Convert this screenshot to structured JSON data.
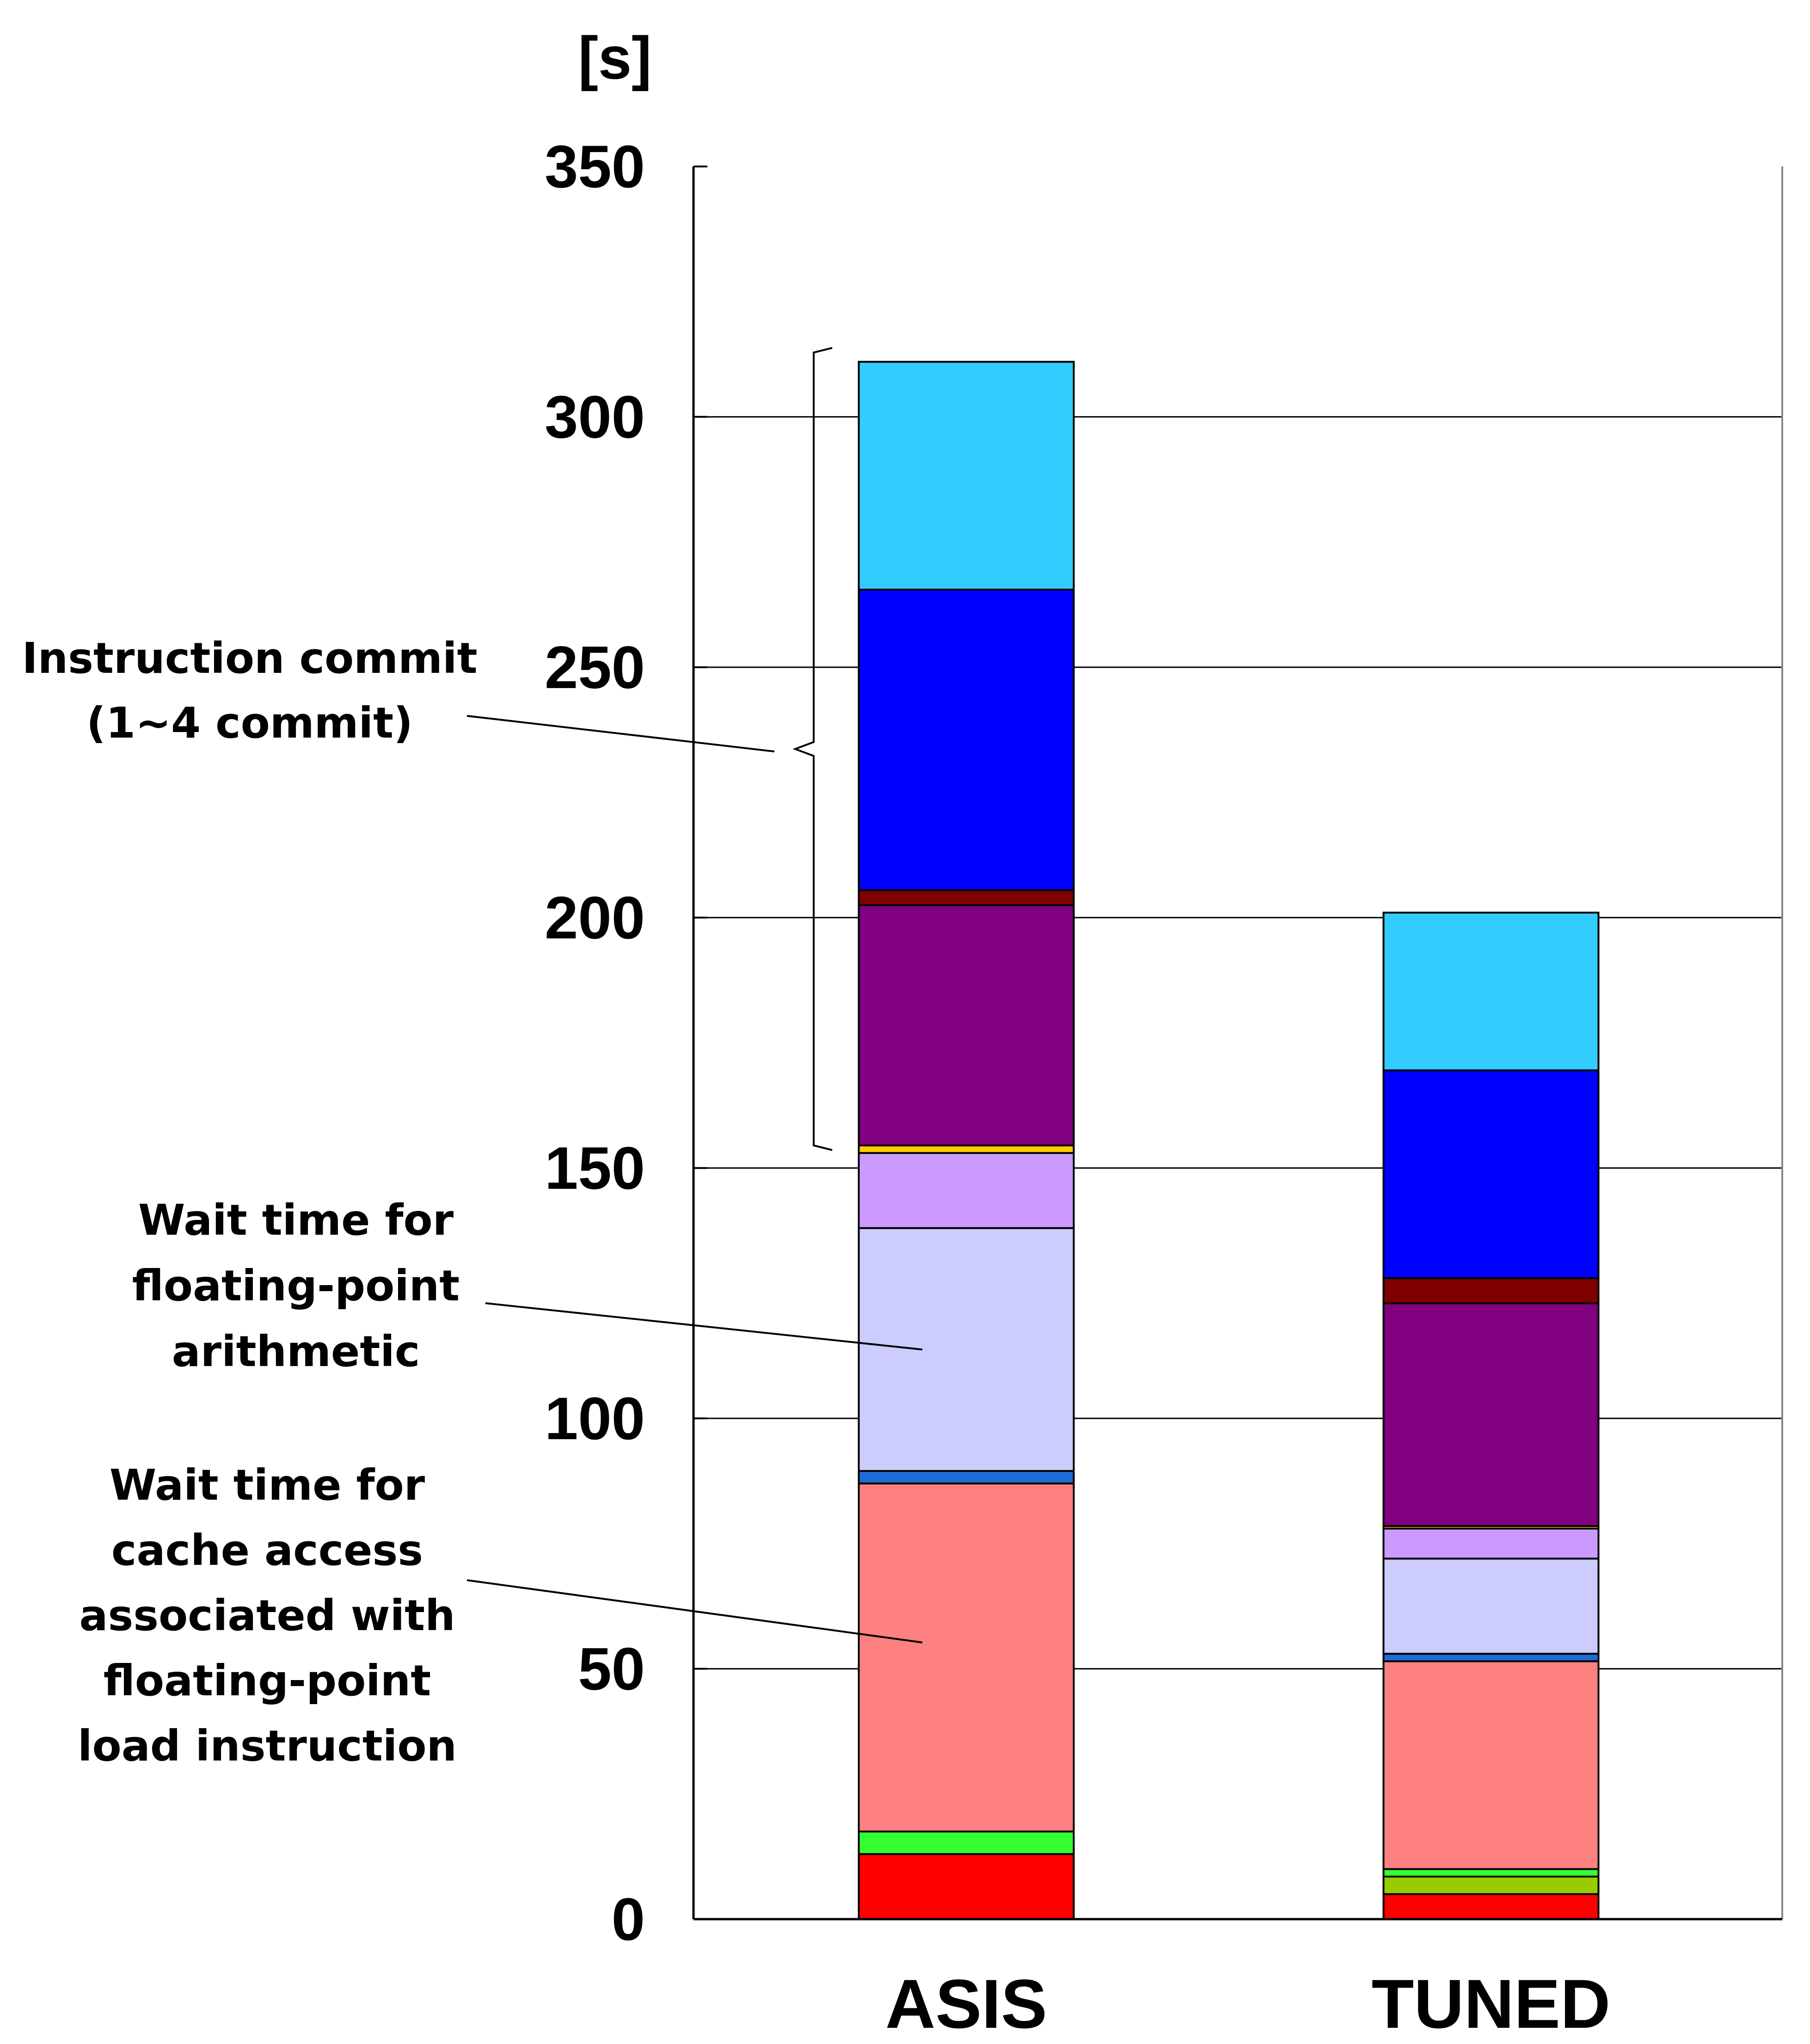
{
  "chart_data": {
    "type": "bar",
    "stacked": true,
    "unit_label": "[s]",
    "title": "",
    "xlabel": "",
    "ylabel": "",
    "ylim": [
      0,
      350
    ],
    "yticks": [
      0,
      50,
      100,
      150,
      200,
      250,
      300,
      350
    ],
    "grid": true,
    "legend": "none",
    "categories": [
      "ASIS",
      "TUNED"
    ],
    "series": [
      {
        "color": "#FF0000",
        "values": [
          13,
          5
        ]
      },
      {
        "color": "#99CC00",
        "values": [
          0,
          3.5
        ]
      },
      {
        "color": "#33FF33",
        "values": [
          4.5,
          1.5
        ]
      },
      {
        "color": "#FF8080",
        "values": [
          69.5,
          41.5
        ]
      },
      {
        "color": "#1E6BD6",
        "values": [
          2.5,
          1.5
        ]
      },
      {
        "color": "#CCCCFF",
        "values": [
          48.5,
          19
        ]
      },
      {
        "color": "#CC99FF",
        "values": [
          15,
          6
        ]
      },
      {
        "color": "#FFCC00",
        "values": [
          1.5,
          0.5
        ]
      },
      {
        "color": "#800080",
        "values": [
          48,
          44.5
        ]
      },
      {
        "color": "#800000",
        "values": [
          3,
          5
        ]
      },
      {
        "color": "#0000FF",
        "values": [
          60,
          41.5
        ]
      },
      {
        "color": "#33CCFF",
        "values": [
          45.5,
          31.5
        ]
      }
    ],
    "annotations": [
      {
        "lines": [
          "Instruction commit",
          "(1~4 commit)"
        ]
      },
      {
        "lines": [
          "Wait time for",
          "floating-point",
          "arithmetic"
        ]
      },
      {
        "lines": [
          "Wait time for",
          "cache access",
          "associated with",
          "floating-point",
          "load instruction"
        ]
      }
    ]
  }
}
